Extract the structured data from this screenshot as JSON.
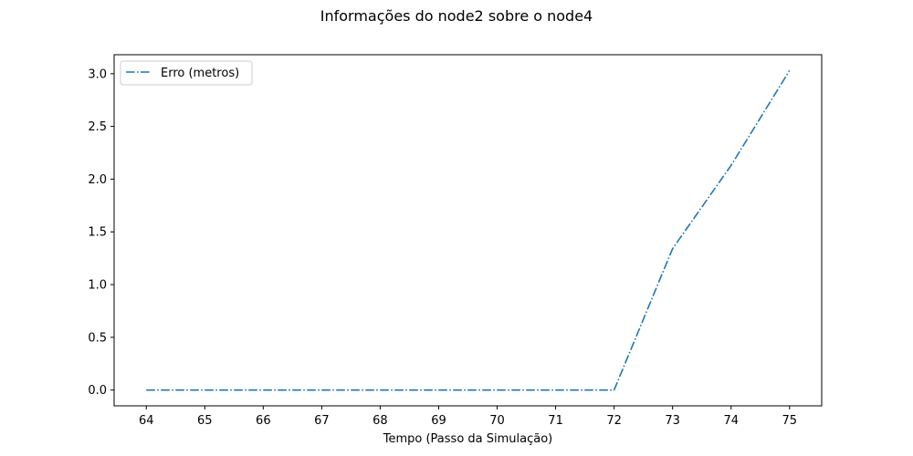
{
  "chart_data": {
    "type": "line",
    "title": "Informações do node2 sobre o node4",
    "xlabel": "Tempo (Passo da Simulação)",
    "ylabel": "",
    "xlim": [
      63.45,
      75.55
    ],
    "ylim": [
      -0.15,
      3.18
    ],
    "xticks": [
      64,
      65,
      66,
      67,
      68,
      69,
      70,
      71,
      72,
      73,
      74,
      75
    ],
    "yticks": [
      0.0,
      0.5,
      1.0,
      1.5,
      2.0,
      2.5,
      3.0
    ],
    "ytick_labels": [
      "0.0",
      "0.5",
      "1.0",
      "1.5",
      "2.0",
      "2.5",
      "3.0"
    ],
    "grid": false,
    "legend_position": "upper-left",
    "series": [
      {
        "name": "Erro (metros)",
        "color": "#1f77b4",
        "line_style": "dash-dot",
        "x": [
          64,
          65,
          66,
          67,
          68,
          69,
          70,
          71,
          72,
          73,
          74,
          75
        ],
        "y": [
          0,
          0,
          0,
          0,
          0,
          0,
          0,
          0,
          0,
          1.34,
          2.13,
          3.03
        ]
      }
    ]
  }
}
